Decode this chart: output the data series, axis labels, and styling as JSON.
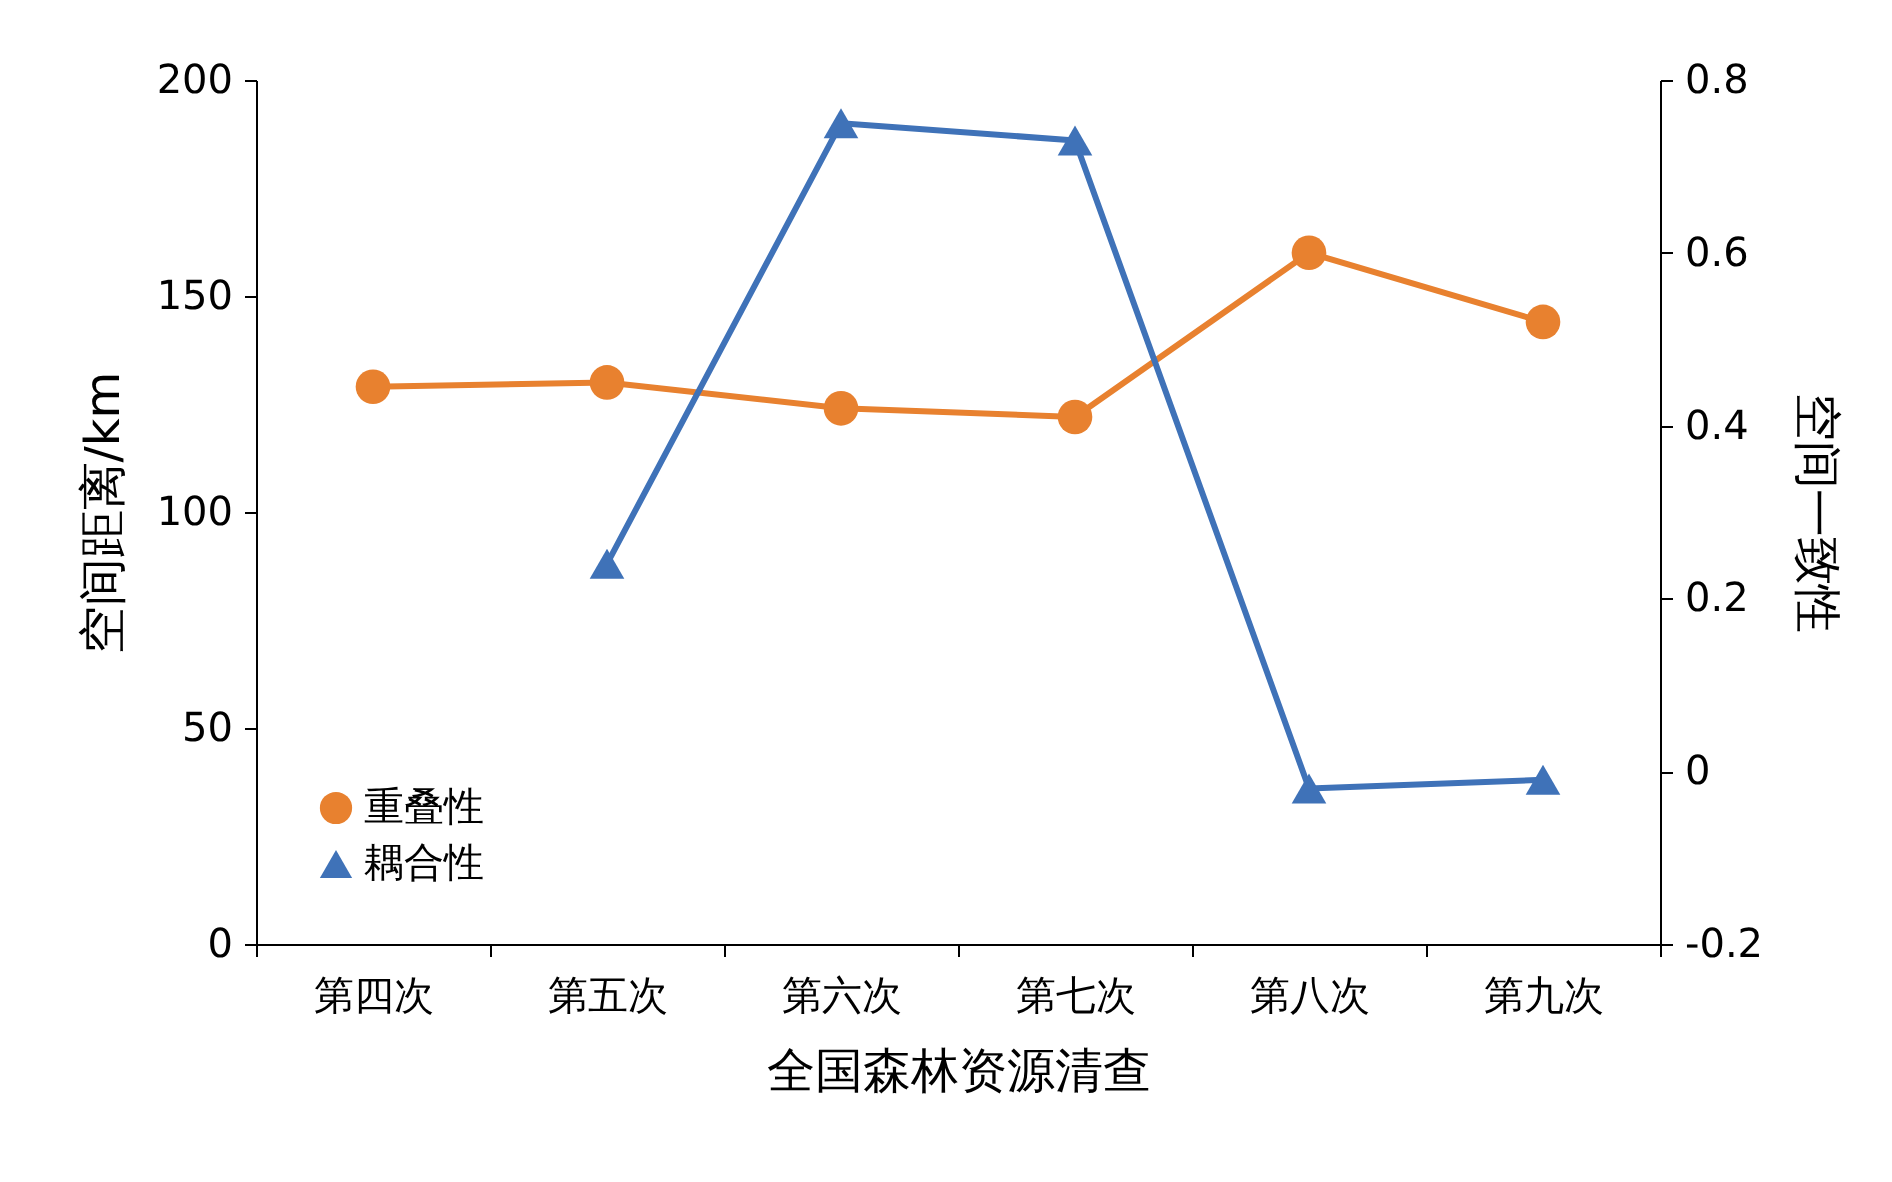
{
  "chart_data": {
    "type": "line",
    "xlabel": "全国森林资源清查",
    "ylabel": "空间距离/km",
    "y2label": "空间一致性",
    "categories": [
      "第四次",
      "第五次",
      "第六次",
      "第七次",
      "第八次",
      "第九次"
    ],
    "series": [
      {
        "name": "重叠性",
        "color": "#e8812f",
        "marker": "circle",
        "values": [
          129,
          130,
          124,
          122,
          160,
          144
        ]
      },
      {
        "name": "耦合性",
        "color": "#3f72b8",
        "marker": "triangle",
        "axis": "y2",
        "values": [
          null,
          0.24,
          0.75,
          0.73,
          -0.02,
          -0.01
        ]
      }
    ],
    "ylim": [
      0,
      200
    ],
    "yticks": [
      0,
      50,
      100,
      150,
      200
    ],
    "y2lim": [
      -0.2,
      0.8
    ],
    "y2ticks": [
      -0.2,
      0,
      0.2,
      0.4,
      0.6,
      0.8
    ],
    "grid": false,
    "legend": "bottom left"
  }
}
